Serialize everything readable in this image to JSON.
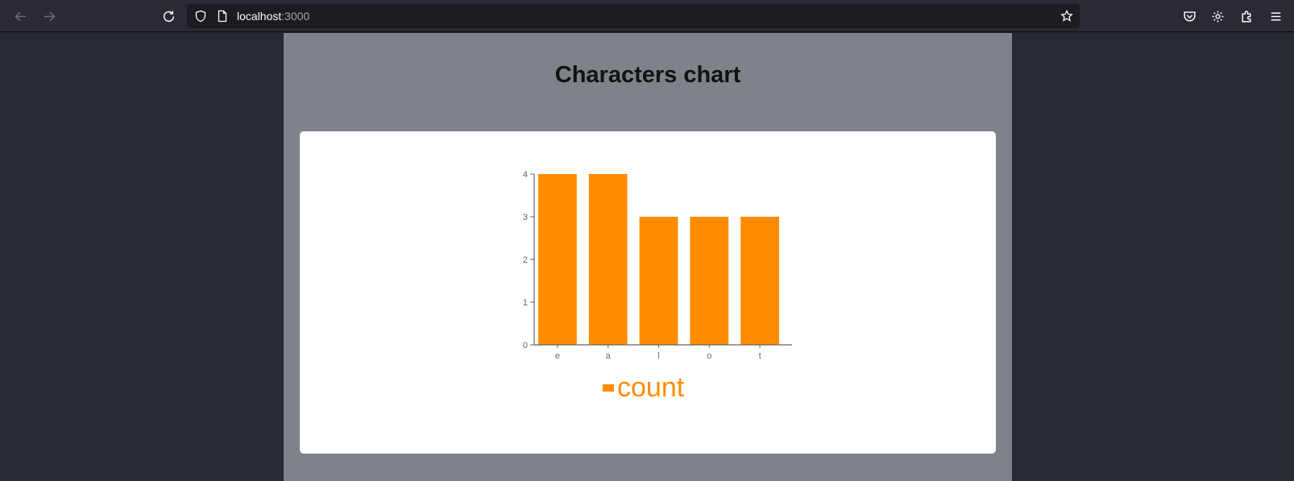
{
  "browser": {
    "url_host": "localhost",
    "url_port": ":3000"
  },
  "page": {
    "title": "Characters chart"
  },
  "colors": {
    "bar": "#ff8c00",
    "axis": "#666666",
    "page_bg": "#7f8288"
  },
  "chart_data": {
    "type": "bar",
    "categories": [
      "e",
      "a",
      "l",
      "o",
      "t"
    ],
    "series": [
      {
        "name": "count",
        "values": [
          4,
          4,
          3,
          3,
          3
        ]
      }
    ],
    "ylim": [
      0,
      4
    ],
    "yticks": [
      0,
      1,
      2,
      3,
      4
    ],
    "grid": false,
    "legend": "bottom-center"
  }
}
